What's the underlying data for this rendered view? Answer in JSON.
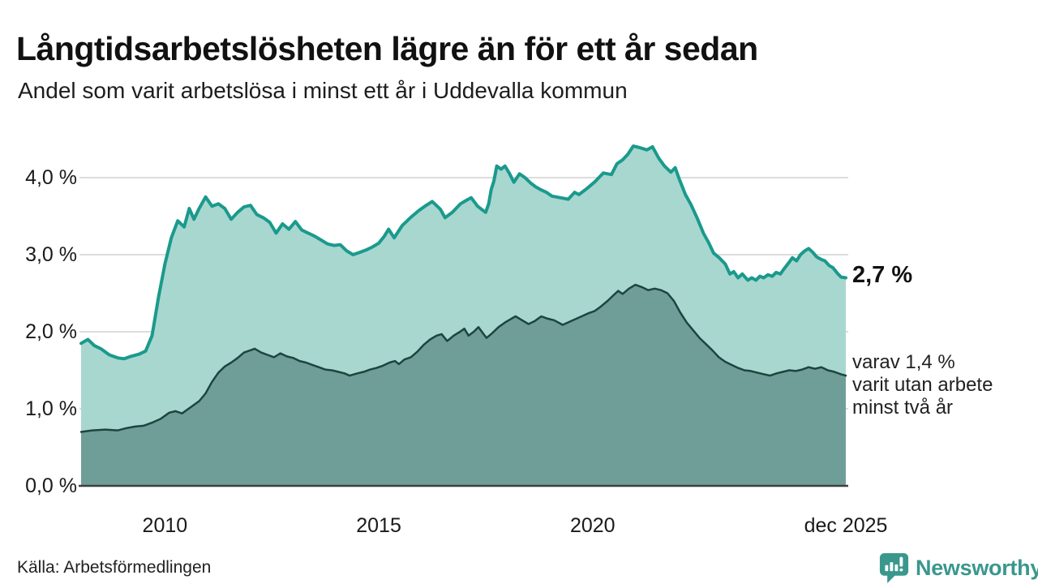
{
  "header": {
    "title": "Långtidsarbetslösheten lägre än för ett år sedan",
    "subtitle": "Andel som varit arbetslösa i minst ett år i Uddevalla kommun"
  },
  "annotations": {
    "end_value_primary": "2,7 %",
    "secondary_lines": [
      "varav 1,4 %",
      "varit utan arbete",
      "minst två år"
    ]
  },
  "footer": {
    "source": "Källa: Arbetsförmedlingen",
    "brand": "Newsworthy",
    "brand_color": "#3a978d"
  },
  "chart_data": {
    "type": "area",
    "title": "Långtidsarbetslösheten lägre än för ett år sedan",
    "subtitle": "Andel som varit arbetslösa i minst ett år i Uddevalla kommun",
    "xlabel": "",
    "ylabel": "",
    "grid": true,
    "grid_color": "#dcdcdc",
    "axis_color": "#3f3f3f",
    "legend_position": "right-annotations",
    "x_range": [
      2008.04,
      2025.92
    ],
    "ylim": [
      0,
      4.6
    ],
    "y_ticks": [
      {
        "label": "0,0 %",
        "value": 0
      },
      {
        "label": "1,0 %",
        "value": 1
      },
      {
        "label": "2,0 %",
        "value": 2
      },
      {
        "label": "3,0 %",
        "value": 3
      },
      {
        "label": "4,0 %",
        "value": 4
      }
    ],
    "x_ticks": [
      {
        "label": "2010",
        "year": 2010
      },
      {
        "label": "2015",
        "year": 2015
      },
      {
        "label": "2020",
        "year": 2020
      },
      {
        "label": "dec 2025",
        "year": 2025.92
      }
    ],
    "series": [
      {
        "name": "Andel arbetslösa minst ett år",
        "end_label": "2,7 %",
        "line_color": "#1a9a8c",
        "fill_color": "#a8d7d0",
        "line_width": 4,
        "points": [
          [
            2008.04,
            1.85
          ],
          [
            2008.2,
            1.9
          ],
          [
            2008.35,
            1.82
          ],
          [
            2008.5,
            1.78
          ],
          [
            2008.7,
            1.7
          ],
          [
            2008.9,
            1.66
          ],
          [
            2009.05,
            1.65
          ],
          [
            2009.2,
            1.68
          ],
          [
            2009.4,
            1.71
          ],
          [
            2009.55,
            1.75
          ],
          [
            2009.7,
            1.95
          ],
          [
            2009.85,
            2.45
          ],
          [
            2010.0,
            2.88
          ],
          [
            2010.15,
            3.22
          ],
          [
            2010.3,
            3.44
          ],
          [
            2010.45,
            3.36
          ],
          [
            2010.57,
            3.6
          ],
          [
            2010.68,
            3.46
          ],
          [
            2010.8,
            3.6
          ],
          [
            2010.95,
            3.75
          ],
          [
            2011.1,
            3.63
          ],
          [
            2011.25,
            3.66
          ],
          [
            2011.4,
            3.6
          ],
          [
            2011.55,
            3.46
          ],
          [
            2011.7,
            3.55
          ],
          [
            2011.85,
            3.62
          ],
          [
            2012.0,
            3.64
          ],
          [
            2012.15,
            3.52
          ],
          [
            2012.3,
            3.48
          ],
          [
            2012.45,
            3.42
          ],
          [
            2012.6,
            3.28
          ],
          [
            2012.75,
            3.4
          ],
          [
            2012.9,
            3.33
          ],
          [
            2013.05,
            3.43
          ],
          [
            2013.2,
            3.32
          ],
          [
            2013.35,
            3.28
          ],
          [
            2013.5,
            3.24
          ],
          [
            2013.65,
            3.19
          ],
          [
            2013.8,
            3.14
          ],
          [
            2013.95,
            3.12
          ],
          [
            2014.1,
            3.13
          ],
          [
            2014.25,
            3.05
          ],
          [
            2014.4,
            3.0
          ],
          [
            2014.55,
            3.03
          ],
          [
            2014.7,
            3.06
          ],
          [
            2014.85,
            3.1
          ],
          [
            2015.0,
            3.15
          ],
          [
            2015.13,
            3.24
          ],
          [
            2015.23,
            3.33
          ],
          [
            2015.36,
            3.22
          ],
          [
            2015.55,
            3.38
          ],
          [
            2015.74,
            3.48
          ],
          [
            2015.93,
            3.57
          ],
          [
            2016.08,
            3.63
          ],
          [
            2016.25,
            3.69
          ],
          [
            2016.44,
            3.59
          ],
          [
            2016.55,
            3.48
          ],
          [
            2016.72,
            3.55
          ],
          [
            2016.91,
            3.66
          ],
          [
            2017.06,
            3.71
          ],
          [
            2017.16,
            3.74
          ],
          [
            2017.31,
            3.63
          ],
          [
            2017.4,
            3.59
          ],
          [
            2017.5,
            3.55
          ],
          [
            2017.57,
            3.66
          ],
          [
            2017.63,
            3.85
          ],
          [
            2017.69,
            3.95
          ],
          [
            2017.76,
            4.15
          ],
          [
            2017.86,
            4.11
          ],
          [
            2017.95,
            4.15
          ],
          [
            2018.05,
            4.06
          ],
          [
            2018.16,
            3.94
          ],
          [
            2018.29,
            4.05
          ],
          [
            2018.42,
            4.0
          ],
          [
            2018.55,
            3.93
          ],
          [
            2018.67,
            3.88
          ],
          [
            2018.8,
            3.84
          ],
          [
            2018.92,
            3.81
          ],
          [
            2019.05,
            3.76
          ],
          [
            2019.24,
            3.74
          ],
          [
            2019.43,
            3.72
          ],
          [
            2019.58,
            3.81
          ],
          [
            2019.68,
            3.78
          ],
          [
            2019.87,
            3.86
          ],
          [
            2020.06,
            3.95
          ],
          [
            2020.25,
            4.06
          ],
          [
            2020.44,
            4.04
          ],
          [
            2020.57,
            4.18
          ],
          [
            2020.7,
            4.23
          ],
          [
            2020.82,
            4.3
          ],
          [
            2020.95,
            4.41
          ],
          [
            2021.1,
            4.39
          ],
          [
            2021.27,
            4.36
          ],
          [
            2021.4,
            4.4
          ],
          [
            2021.55,
            4.25
          ],
          [
            2021.68,
            4.15
          ],
          [
            2021.83,
            4.07
          ],
          [
            2021.93,
            4.13
          ],
          [
            2022.02,
            3.99
          ],
          [
            2022.17,
            3.78
          ],
          [
            2022.3,
            3.65
          ],
          [
            2022.44,
            3.48
          ],
          [
            2022.59,
            3.28
          ],
          [
            2022.72,
            3.15
          ],
          [
            2022.83,
            3.02
          ],
          [
            2022.96,
            2.96
          ],
          [
            2023.1,
            2.88
          ],
          [
            2023.21,
            2.75
          ],
          [
            2023.3,
            2.78
          ],
          [
            2023.4,
            2.7
          ],
          [
            2023.5,
            2.75
          ],
          [
            2023.63,
            2.67
          ],
          [
            2023.72,
            2.7
          ],
          [
            2023.82,
            2.67
          ],
          [
            2023.91,
            2.72
          ],
          [
            2024.0,
            2.7
          ],
          [
            2024.1,
            2.74
          ],
          [
            2024.2,
            2.72
          ],
          [
            2024.29,
            2.77
          ],
          [
            2024.39,
            2.75
          ],
          [
            2024.48,
            2.82
          ],
          [
            2024.58,
            2.89
          ],
          [
            2024.67,
            2.96
          ],
          [
            2024.77,
            2.92
          ],
          [
            2024.86,
            3.0
          ],
          [
            2024.96,
            3.05
          ],
          [
            2025.05,
            3.08
          ],
          [
            2025.15,
            3.03
          ],
          [
            2025.24,
            2.97
          ],
          [
            2025.34,
            2.94
          ],
          [
            2025.43,
            2.92
          ],
          [
            2025.53,
            2.86
          ],
          [
            2025.62,
            2.83
          ],
          [
            2025.72,
            2.76
          ],
          [
            2025.81,
            2.71
          ],
          [
            2025.92,
            2.7
          ]
        ]
      },
      {
        "name": "varav utan arbete minst två år",
        "end_label": "1,4 %",
        "line_color": "#1d453f",
        "fill_color": "#6f9e98",
        "line_width": 2.5,
        "points": [
          [
            2008.04,
            0.7
          ],
          [
            2008.3,
            0.72
          ],
          [
            2008.6,
            0.73
          ],
          [
            2008.9,
            0.72
          ],
          [
            2009.1,
            0.75
          ],
          [
            2009.3,
            0.77
          ],
          [
            2009.5,
            0.78
          ],
          [
            2009.7,
            0.82
          ],
          [
            2009.9,
            0.87
          ],
          [
            2010.1,
            0.95
          ],
          [
            2010.25,
            0.97
          ],
          [
            2010.4,
            0.94
          ],
          [
            2010.6,
            1.02
          ],
          [
            2010.8,
            1.1
          ],
          [
            2010.95,
            1.2
          ],
          [
            2011.1,
            1.35
          ],
          [
            2011.25,
            1.47
          ],
          [
            2011.4,
            1.55
          ],
          [
            2011.55,
            1.6
          ],
          [
            2011.7,
            1.66
          ],
          [
            2011.85,
            1.73
          ],
          [
            2012.0,
            1.76
          ],
          [
            2012.1,
            1.78
          ],
          [
            2012.25,
            1.73
          ],
          [
            2012.4,
            1.7
          ],
          [
            2012.55,
            1.67
          ],
          [
            2012.7,
            1.72
          ],
          [
            2012.85,
            1.68
          ],
          [
            2013.0,
            1.66
          ],
          [
            2013.15,
            1.62
          ],
          [
            2013.3,
            1.6
          ],
          [
            2013.45,
            1.57
          ],
          [
            2013.6,
            1.54
          ],
          [
            2013.75,
            1.51
          ],
          [
            2013.9,
            1.5
          ],
          [
            2014.05,
            1.48
          ],
          [
            2014.2,
            1.46
          ],
          [
            2014.32,
            1.43
          ],
          [
            2014.5,
            1.46
          ],
          [
            2014.65,
            1.48
          ],
          [
            2014.8,
            1.51
          ],
          [
            2014.95,
            1.53
          ],
          [
            2015.1,
            1.56
          ],
          [
            2015.25,
            1.6
          ],
          [
            2015.38,
            1.62
          ],
          [
            2015.47,
            1.58
          ],
          [
            2015.6,
            1.64
          ],
          [
            2015.75,
            1.67
          ],
          [
            2015.9,
            1.74
          ],
          [
            2016.05,
            1.83
          ],
          [
            2016.2,
            1.9
          ],
          [
            2016.35,
            1.95
          ],
          [
            2016.47,
            1.97
          ],
          [
            2016.6,
            1.88
          ],
          [
            2016.75,
            1.95
          ],
          [
            2016.9,
            2.0
          ],
          [
            2017.0,
            2.04
          ],
          [
            2017.1,
            1.95
          ],
          [
            2017.22,
            2.0
          ],
          [
            2017.33,
            2.06
          ],
          [
            2017.45,
            1.97
          ],
          [
            2017.52,
            1.92
          ],
          [
            2017.65,
            1.98
          ],
          [
            2017.8,
            2.06
          ],
          [
            2017.95,
            2.12
          ],
          [
            2018.1,
            2.17
          ],
          [
            2018.2,
            2.2
          ],
          [
            2018.35,
            2.15
          ],
          [
            2018.5,
            2.1
          ],
          [
            2018.65,
            2.14
          ],
          [
            2018.8,
            2.2
          ],
          [
            2018.95,
            2.17
          ],
          [
            2019.1,
            2.15
          ],
          [
            2019.3,
            2.09
          ],
          [
            2019.5,
            2.14
          ],
          [
            2019.7,
            2.19
          ],
          [
            2019.9,
            2.24
          ],
          [
            2020.05,
            2.27
          ],
          [
            2020.2,
            2.33
          ],
          [
            2020.35,
            2.4
          ],
          [
            2020.5,
            2.48
          ],
          [
            2020.6,
            2.53
          ],
          [
            2020.7,
            2.49
          ],
          [
            2020.85,
            2.56
          ],
          [
            2021.0,
            2.61
          ],
          [
            2021.15,
            2.58
          ],
          [
            2021.3,
            2.54
          ],
          [
            2021.45,
            2.56
          ],
          [
            2021.6,
            2.54
          ],
          [
            2021.75,
            2.5
          ],
          [
            2021.9,
            2.4
          ],
          [
            2022.05,
            2.25
          ],
          [
            2022.2,
            2.12
          ],
          [
            2022.35,
            2.02
          ],
          [
            2022.5,
            1.92
          ],
          [
            2022.65,
            1.84
          ],
          [
            2022.8,
            1.76
          ],
          [
            2022.95,
            1.67
          ],
          [
            2023.1,
            1.61
          ],
          [
            2023.25,
            1.57
          ],
          [
            2023.4,
            1.53
          ],
          [
            2023.55,
            1.5
          ],
          [
            2023.7,
            1.49
          ],
          [
            2023.85,
            1.47
          ],
          [
            2024.0,
            1.45
          ],
          [
            2024.15,
            1.43
          ],
          [
            2024.3,
            1.46
          ],
          [
            2024.45,
            1.48
          ],
          [
            2024.6,
            1.5
          ],
          [
            2024.75,
            1.49
          ],
          [
            2024.9,
            1.51
          ],
          [
            2025.05,
            1.54
          ],
          [
            2025.2,
            1.52
          ],
          [
            2025.35,
            1.54
          ],
          [
            2025.5,
            1.5
          ],
          [
            2025.65,
            1.48
          ],
          [
            2025.8,
            1.45
          ],
          [
            2025.92,
            1.43
          ]
        ]
      }
    ]
  }
}
